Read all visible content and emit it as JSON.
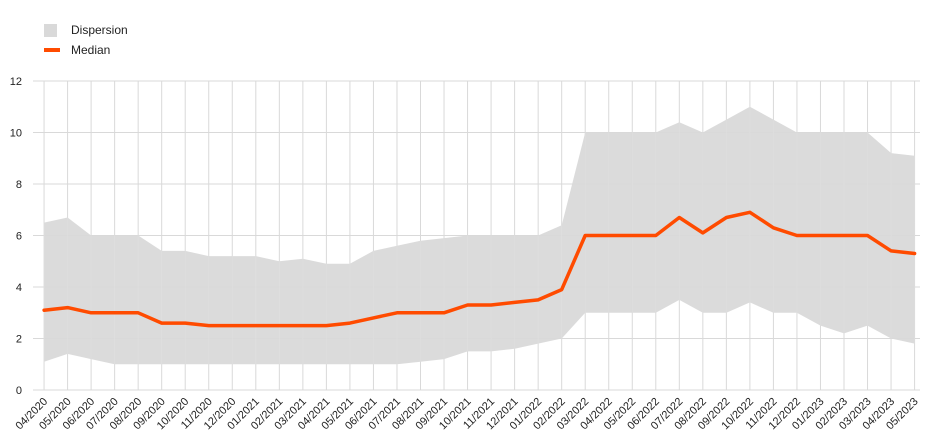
{
  "legend": {
    "band_label": "Dispersion",
    "line_label": "Median"
  },
  "colors": {
    "band": "#d9d9d9",
    "line": "#ff4b00",
    "grid": "#d9d9d9"
  },
  "chart_data": {
    "type": "area",
    "title": "",
    "xlabel": "",
    "ylabel": "",
    "ylim": [
      0,
      12
    ],
    "yticks": [
      0,
      2,
      4,
      6,
      8,
      10,
      12
    ],
    "grid": true,
    "legend_position": "top-left",
    "categories": [
      "04/2020",
      "05/2020",
      "06/2020",
      "07/2020",
      "08/2020",
      "09/2020",
      "10/2020",
      "11/2020",
      "12/2020",
      "01/2021",
      "02/2021",
      "03/2021",
      "04/2021",
      "05/2021",
      "06/2021",
      "07/2021",
      "08/2021",
      "09/2021",
      "10/2021",
      "11/2021",
      "12/2021",
      "01/2022",
      "02/2022",
      "03/2022",
      "04/2022",
      "05/2022",
      "06/2022",
      "07/2022",
      "08/2022",
      "09/2022",
      "10/2022",
      "11/2022",
      "12/2022",
      "01/2023",
      "02/2023",
      "03/2023",
      "04/2023",
      "05/2023"
    ],
    "series": [
      {
        "name": "Dispersion",
        "kind": "band",
        "low": [
          1.1,
          1.4,
          1.2,
          1.0,
          1.0,
          1.0,
          1.0,
          1.0,
          1.0,
          1.0,
          1.0,
          1.0,
          1.0,
          1.0,
          1.0,
          1.0,
          1.1,
          1.2,
          1.5,
          1.5,
          1.6,
          1.8,
          2.0,
          3.0,
          3.0,
          3.0,
          3.0,
          3.5,
          3.0,
          3.0,
          3.4,
          3.0,
          3.0,
          2.5,
          2.2,
          2.5,
          2.0,
          1.8
        ],
        "high": [
          6.5,
          6.7,
          6.0,
          6.0,
          6.0,
          5.4,
          5.4,
          5.2,
          5.2,
          5.2,
          5.0,
          5.1,
          4.9,
          4.9,
          5.4,
          5.6,
          5.8,
          5.9,
          6.0,
          6.0,
          6.0,
          6.0,
          6.4,
          10.0,
          10.0,
          10.0,
          10.0,
          10.4,
          10.0,
          10.5,
          11.0,
          10.5,
          10.0,
          10.0,
          10.0,
          10.0,
          9.2,
          9.1
        ]
      },
      {
        "name": "Median",
        "kind": "line",
        "values": [
          3.1,
          3.2,
          3.0,
          3.0,
          3.0,
          2.6,
          2.6,
          2.5,
          2.5,
          2.5,
          2.5,
          2.5,
          2.5,
          2.6,
          2.8,
          3.0,
          3.0,
          3.0,
          3.3,
          3.3,
          3.4,
          3.5,
          3.9,
          6.0,
          6.0,
          6.0,
          6.0,
          6.7,
          6.1,
          6.7,
          6.9,
          6.3,
          6.0,
          6.0,
          6.0,
          6.0,
          5.4,
          5.3
        ]
      }
    ]
  }
}
